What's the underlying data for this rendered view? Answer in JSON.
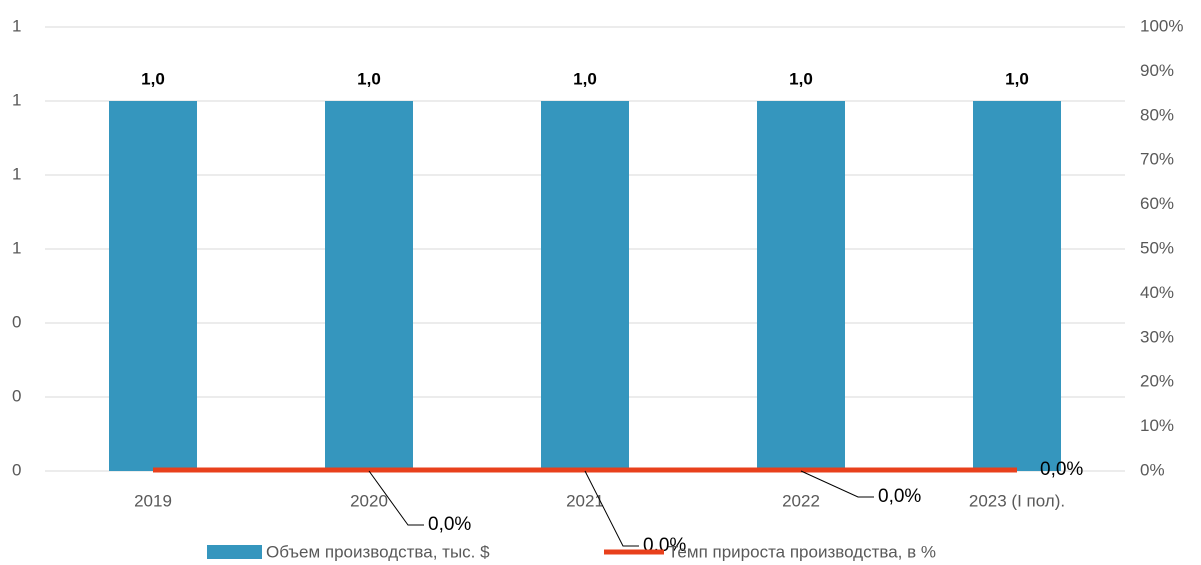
{
  "chart_data": {
    "type": "bar-line",
    "categories": [
      "2019",
      "2020",
      "2021",
      "2022",
      "2023 (I пол)."
    ],
    "series": [
      {
        "name": "Объем производства, тыс. $",
        "type": "bar",
        "color": "#3596be",
        "values": [
          1.0,
          1.0,
          1.0,
          1.0,
          1.0
        ],
        "value_labels": [
          "1,0",
          "1,0",
          "1,0",
          "1,0",
          "1,0"
        ]
      },
      {
        "name": "Темп прироста производства, в %",
        "type": "line",
        "axis": "y2",
        "color": "#e8401c",
        "values": [
          0,
          0,
          0,
          0,
          0
        ],
        "value_labels": [
          null,
          "0,0%",
          "0,0%",
          "0,0%",
          "0,0%"
        ]
      }
    ],
    "ylim": [
      0,
      1.2
    ],
    "yticks": [
      0,
      {
        "value": 0.2,
        "label": "0"
      },
      {
        "value": 0.4,
        "label": "0"
      },
      {
        "value": 0.6,
        "label": "1"
      },
      {
        "value": 0.8,
        "label": "1"
      },
      1,
      {
        "value": 1.2,
        "label": "1"
      }
    ],
    "y2lim": [
      0,
      100
    ],
    "y2ticks": [
      {
        "value": 0,
        "label": "0%"
      },
      {
        "value": 10,
        "label": "10%"
      },
      {
        "value": 20,
        "label": "20%"
      },
      {
        "value": 30,
        "label": "30%"
      },
      {
        "value": 40,
        "label": "40%"
      },
      {
        "value": 50,
        "label": "50%"
      },
      {
        "value": 60,
        "label": "60%"
      },
      {
        "value": 70,
        "label": "70%"
      },
      {
        "value": 80,
        "label": "80%"
      },
      {
        "value": 90,
        "label": "90%"
      },
      {
        "value": 100,
        "label": "100%"
      }
    ],
    "grid": true
  }
}
